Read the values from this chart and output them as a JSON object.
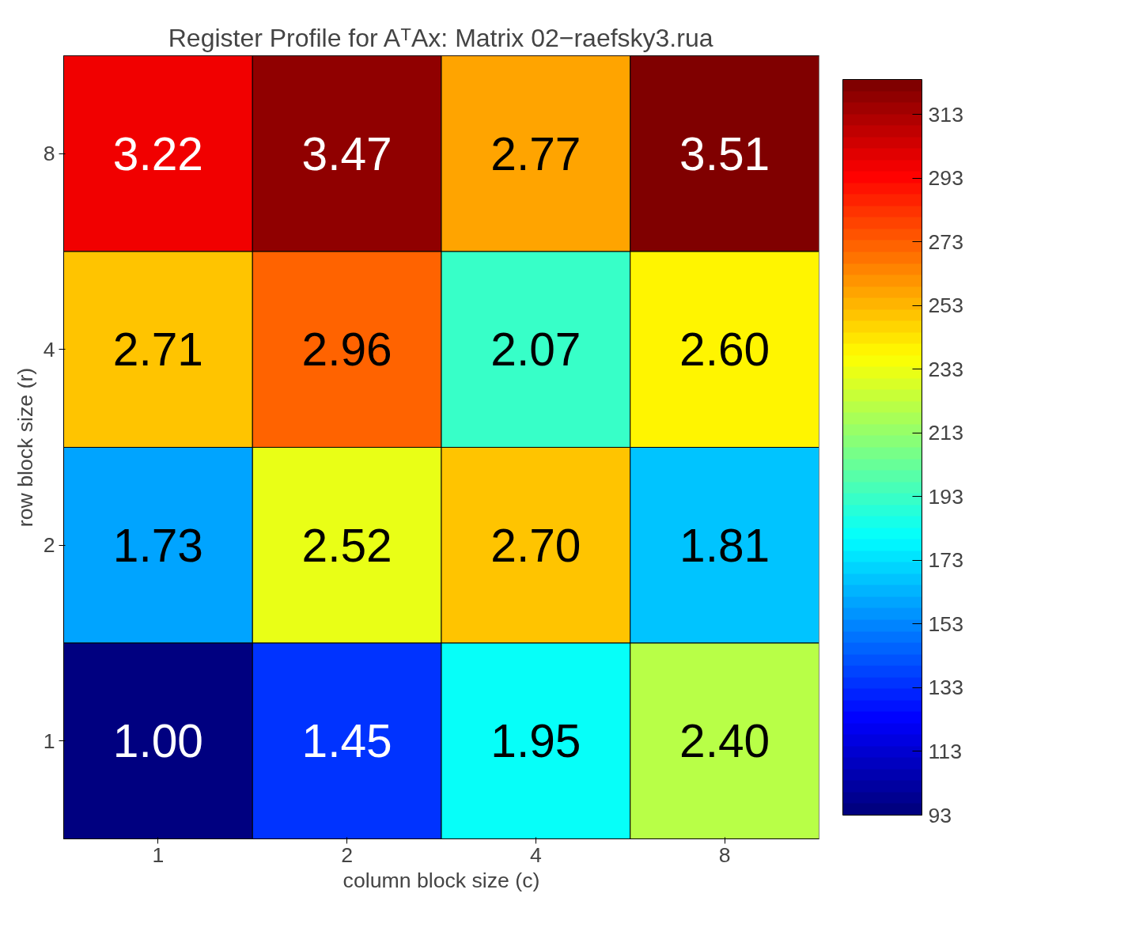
{
  "chart_data": {
    "type": "heatmap",
    "title": "Register Profile for AᵀAx: Matrix 02−raefsky3.rua",
    "xlabel": "column block size (c)",
    "ylabel": "row block size (r)",
    "categories": [
      "1",
      "2",
      "4",
      "8"
    ],
    "y_categories": [
      "8",
      "4",
      "2",
      "1"
    ],
    "cells": [
      [
        297,
        320,
        256,
        324
      ],
      [
        250,
        273,
        191,
        240
      ],
      [
        160,
        233,
        249,
        167
      ],
      [
        93,
        134,
        180,
        222
      ]
    ],
    "annotations": [
      "3.22",
      "3.47",
      "2.77",
      "3.51",
      "2.71",
      "2.96",
      "2.07",
      "2.60",
      "1.73",
      "2.52",
      "2.70",
      "1.81",
      "1.00",
      "1.45",
      "1.95",
      "2.40"
    ],
    "clim": [
      93,
      324
    ],
    "cticks": [
      93,
      113,
      133,
      153,
      173,
      193,
      213,
      233,
      253,
      273,
      293,
      313
    ]
  }
}
